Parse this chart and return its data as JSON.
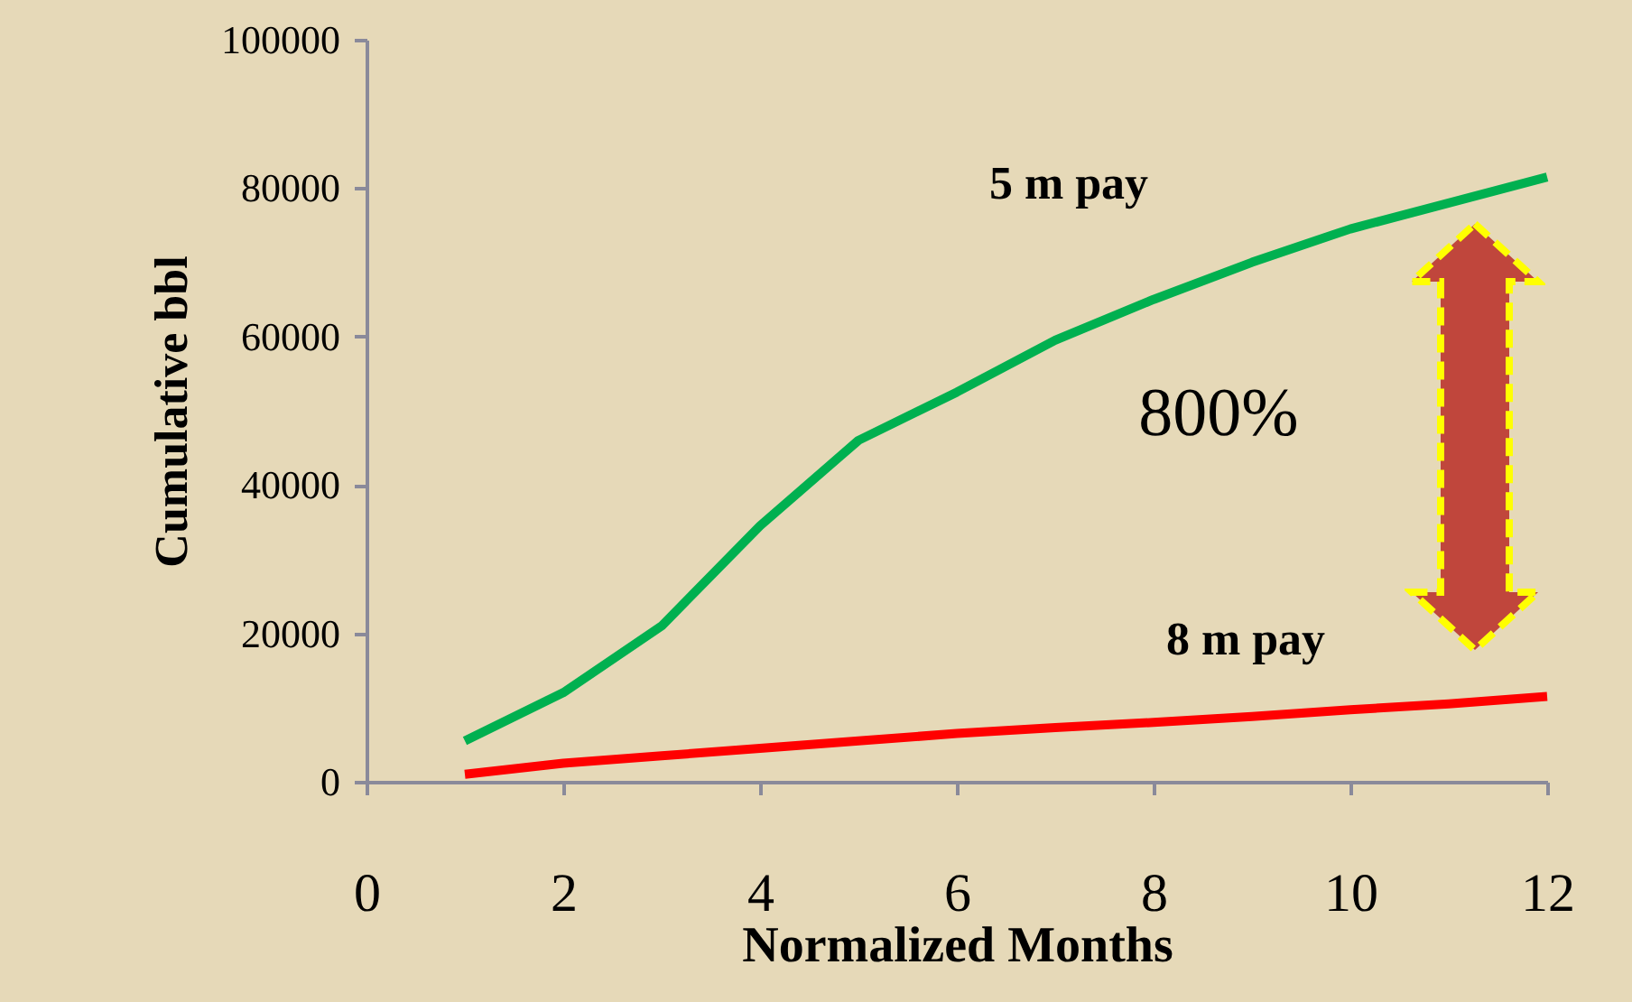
{
  "chart_data": {
    "type": "line",
    "xlabel": "Normalized Months",
    "ylabel": "Cumulative bbl",
    "x": [
      1,
      2,
      3,
      4,
      5,
      6,
      7,
      8,
      9,
      10,
      11,
      12
    ],
    "series": [
      {
        "name": "5 m pay",
        "color": "#00b050",
        "values": [
          5500,
          12000,
          21000,
          34500,
          46000,
          52500,
          59500,
          65000,
          70000,
          74500,
          78000,
          81500
        ]
      },
      {
        "name": "8 m pay",
        "color": "#ff0000",
        "values": [
          1000,
          2500,
          3500,
          4500,
          5500,
          6500,
          7300,
          8000,
          8800,
          9700,
          10500,
          11500
        ]
      }
    ],
    "xlim": [
      0,
      12
    ],
    "xticks": [
      0,
      2,
      4,
      6,
      8,
      10,
      12
    ],
    "ylim": [
      0,
      100000
    ],
    "yticks": [
      0,
      20000,
      40000,
      60000,
      80000,
      100000
    ],
    "grid": false,
    "marker": "none",
    "line_style": "solid",
    "annotations": [
      "800%"
    ]
  }
}
